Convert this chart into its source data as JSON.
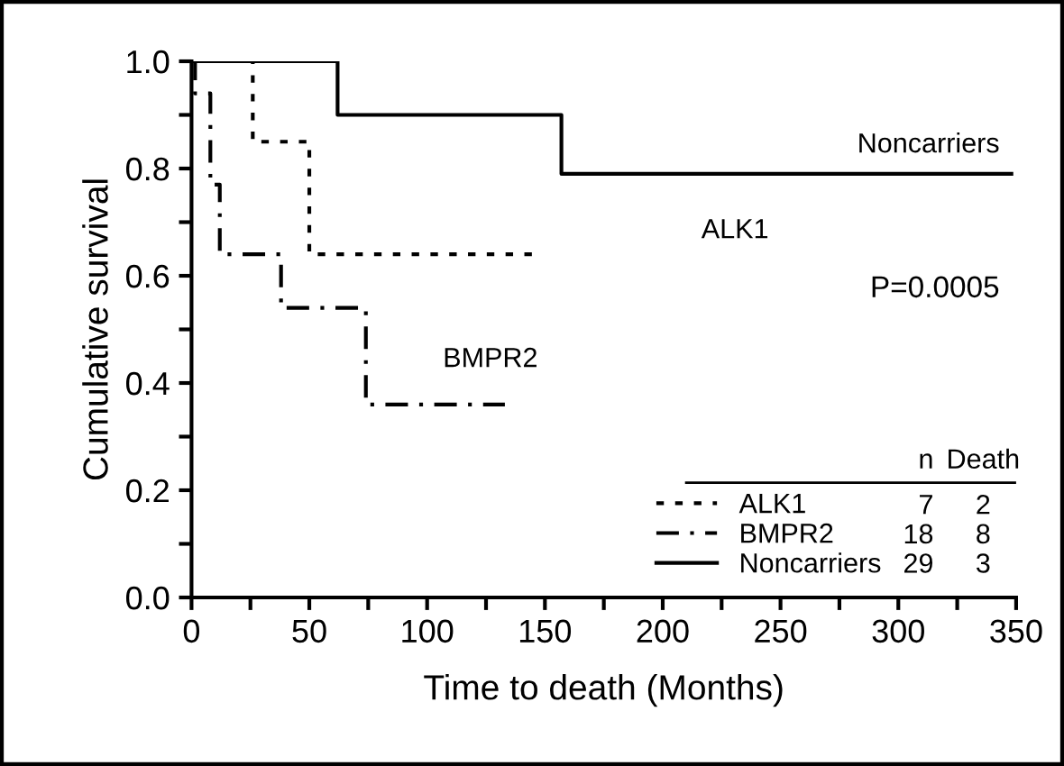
{
  "chart_data": {
    "type": "step",
    "xlabel": "Time to death (Months)",
    "ylabel": "Cumulative survival",
    "series": [
      {
        "name": "ALK1",
        "color": "#000000",
        "line_style": "dotted",
        "x": [
          0,
          26,
          50,
          146
        ],
        "values": [
          1.0,
          0.85,
          0.64,
          0.64
        ]
      },
      {
        "name": "BMPR2",
        "color": "#000000",
        "line_style": "dashdot",
        "x": [
          0,
          1.5,
          8,
          12,
          38,
          74,
          133
        ],
        "values": [
          1.0,
          0.94,
          0.77,
          0.64,
          0.54,
          0.36,
          0.36
        ]
      },
      {
        "name": "Noncarriers",
        "color": "#000000",
        "line_style": "solid",
        "x": [
          0,
          62,
          157,
          348
        ],
        "values": [
          1.0,
          0.9,
          0.79,
          0.79
        ]
      }
    ],
    "xlim": [
      0,
      350
    ],
    "ylim": [
      0,
      1.0
    ],
    "xticks": [
      0,
      {
        "value": 25,
        "label": null
      },
      50,
      {
        "value": 75,
        "label": null
      },
      100,
      {
        "value": 125,
        "label": null
      },
      150,
      {
        "value": 175,
        "label": null
      },
      200,
      {
        "value": 225,
        "label": null
      },
      250,
      {
        "value": 275,
        "label": null
      },
      300,
      {
        "value": 325,
        "label": null
      },
      350
    ],
    "yticks": [
      {
        "value": 0,
        "label": "0.0"
      },
      {
        "value": 0.1,
        "label": null
      },
      {
        "value": 0.2,
        "label": "0.2"
      },
      {
        "value": 0.3,
        "label": null
      },
      {
        "value": 0.4,
        "label": "0.4"
      },
      {
        "value": 0.5,
        "label": null
      },
      {
        "value": 0.6,
        "label": "0.6"
      },
      {
        "value": 0.7,
        "label": null
      },
      {
        "value": 0.8,
        "label": "0.8"
      },
      {
        "value": 0.9,
        "label": null
      },
      {
        "value": 1.0,
        "label": "1.0"
      }
    ],
    "annotations": [
      "P=0.0005",
      "n",
      "Death",
      "7",
      "2",
      "18",
      "8",
      "29",
      "3"
    ],
    "grid": false,
    "legend": "bottom right"
  }
}
